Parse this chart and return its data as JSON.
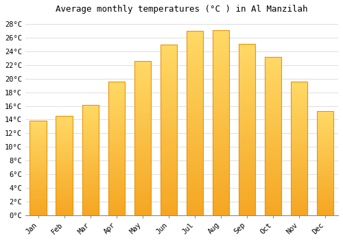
{
  "title": "Average monthly temperatures (°C ) in Al Manzilah",
  "months": [
    "Jan",
    "Feb",
    "Mar",
    "Apr",
    "May",
    "Jun",
    "Jul",
    "Aug",
    "Sep",
    "Oct",
    "Nov",
    "Dec"
  ],
  "temperatures": [
    13.8,
    14.5,
    16.2,
    19.6,
    22.6,
    25.0,
    27.0,
    27.1,
    25.1,
    23.2,
    19.6,
    15.3
  ],
  "bar_color_bottom": "#F5A623",
  "bar_color_top": "#FFD966",
  "bar_edge_color": "#E8930A",
  "background_color": "#FFFFFF",
  "grid_color": "#DDDDDD",
  "ytick_labels": [
    "0°C",
    "2°C",
    "4°C",
    "6°C",
    "8°C",
    "10°C",
    "12°C",
    "14°C",
    "16°C",
    "18°C",
    "20°C",
    "22°C",
    "24°C",
    "26°C",
    "28°C"
  ],
  "ytick_values": [
    0,
    2,
    4,
    6,
    8,
    10,
    12,
    14,
    16,
    18,
    20,
    22,
    24,
    26,
    28
  ],
  "ylim": [
    0,
    29
  ],
  "title_fontsize": 9,
  "tick_fontsize": 7.5,
  "font_family": "monospace",
  "bar_width": 0.65,
  "gradient_steps": 100
}
